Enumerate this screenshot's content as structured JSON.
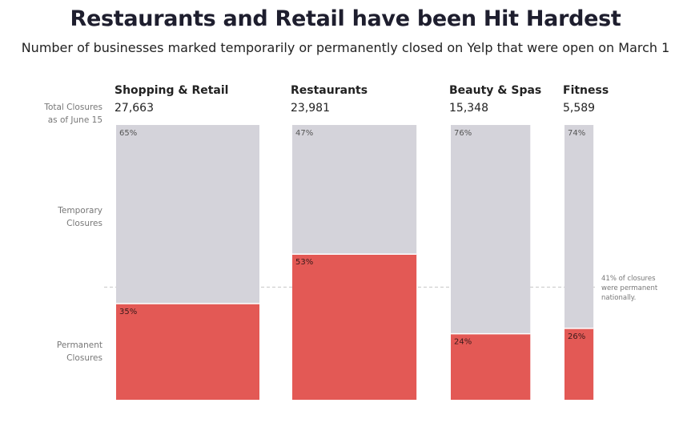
{
  "title": "Restaurants and Retail have been Hit Hardest",
  "subtitle": "Number of businesses marked temporarily or permanently closed on Yelp that were open on March 1",
  "row_labels": {
    "total_line1": "Total Closures",
    "total_line2": "as of June 15",
    "temporary_line1": "Temporary",
    "temporary_line2": "Closures",
    "permanent_line1": "Permanent",
    "permanent_line2": "Closures"
  },
  "national_note": [
    "41% of closures",
    "were permanent",
    "nationally."
  ],
  "colors": {
    "temporary": "#d4d3da",
    "permanent": "#e35955",
    "reference_line": "#c8c8c8"
  },
  "chart_data": {
    "type": "bar",
    "stacked": true,
    "width_encodes": "total closures",
    "categories": [
      "Shopping & Retail",
      "Restaurants",
      "Beauty & Spas",
      "Fitness"
    ],
    "total_closures": [
      27663,
      23981,
      15348,
      5589
    ],
    "total_closures_labels": [
      "27,663",
      "23,981",
      "15,348",
      "5,589"
    ],
    "series": [
      {
        "name": "Temporary Closures",
        "values": [
          65,
          47,
          76,
          74
        ]
      },
      {
        "name": "Permanent Closures",
        "values": [
          35,
          53,
          24,
          26
        ]
      }
    ],
    "national_permanent_share": 41,
    "ylim": [
      0,
      100
    ]
  }
}
